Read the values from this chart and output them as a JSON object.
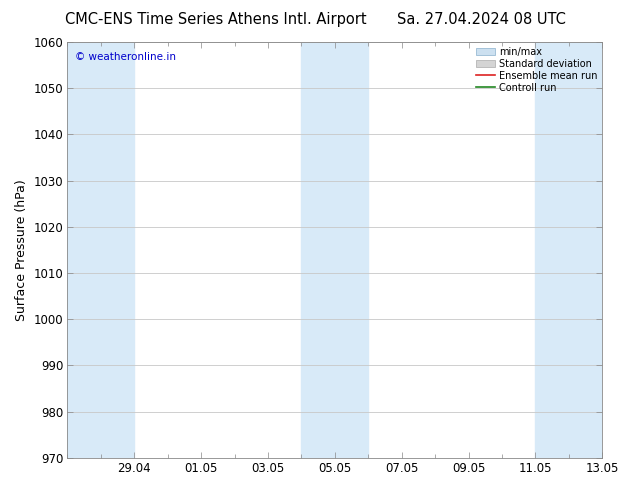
{
  "title_left": "CMC-ENS Time Series Athens Intl. Airport",
  "title_right": "Sa. 27.04.2024 08 UTC",
  "ylabel": "Surface Pressure (hPa)",
  "ylim": [
    970,
    1060
  ],
  "yticks": [
    970,
    980,
    990,
    1000,
    1010,
    1020,
    1030,
    1040,
    1050,
    1060
  ],
  "xtick_labels": [
    "29.04",
    "01.05",
    "03.05",
    "05.05",
    "07.05",
    "09.05",
    "11.05",
    "13.05"
  ],
  "watermark": "© weatheronline.in",
  "watermark_color": "#0000cc",
  "legend_labels": [
    "min/max",
    "Standard deviation",
    "Ensemble mean run",
    "Controll run"
  ],
  "shade_color": "#d8eaf8",
  "background_color": "#ffffff",
  "grid_color": "#c8c8c8",
  "title_fontsize": 10.5,
  "tick_fontsize": 8.5,
  "ylabel_fontsize": 9
}
